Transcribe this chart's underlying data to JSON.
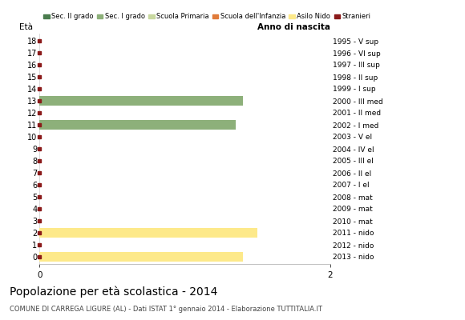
{
  "ages": [
    18,
    17,
    16,
    15,
    14,
    13,
    12,
    11,
    10,
    9,
    8,
    7,
    6,
    5,
    4,
    3,
    2,
    1,
    0
  ],
  "right_labels": [
    "1995 - V sup",
    "1996 - VI sup",
    "1997 - III sup",
    "1998 - II sup",
    "1999 - I sup",
    "2000 - III med",
    "2001 - II med",
    "2002 - I med",
    "2003 - V el",
    "2004 - IV el",
    "2005 - III el",
    "2006 - II el",
    "2007 - I el",
    "2008 - mat",
    "2009 - mat",
    "2010 - mat",
    "2011 - nido",
    "2012 - nido",
    "2013 - nido"
  ],
  "bar_values": [
    0,
    0,
    0,
    0,
    0,
    1.4,
    0,
    1.35,
    0,
    0,
    0,
    0,
    0,
    0,
    0,
    0,
    1.5,
    0,
    1.4
  ],
  "bar_colors": [
    "none",
    "none",
    "none",
    "none",
    "none",
    "#8db07a",
    "none",
    "#8db07a",
    "none",
    "none",
    "none",
    "none",
    "none",
    "none",
    "none",
    "none",
    "#fde98a",
    "none",
    "#fde98a"
  ],
  "marker_color": "#8b1a1a",
  "sec2_color": "#4a7c4e",
  "sec1_color": "#8db07a",
  "primaria_color": "#c8d8a0",
  "infanzia_color": "#e07b3a",
  "nido_color": "#fde98a",
  "stranieri_color": "#8b1a1a",
  "title": "Popolazione per età scolastica - 2014",
  "subtitle": "COMUNE DI CARREGA LIGURE (AL) - Dati ISTAT 1° gennaio 2014 - Elaborazione TUTTITALIA.IT",
  "ylabel_left": "Età",
  "ylabel_right": "Anno di nascita",
  "xlim": [
    0,
    2
  ],
  "bar_height": 0.75
}
